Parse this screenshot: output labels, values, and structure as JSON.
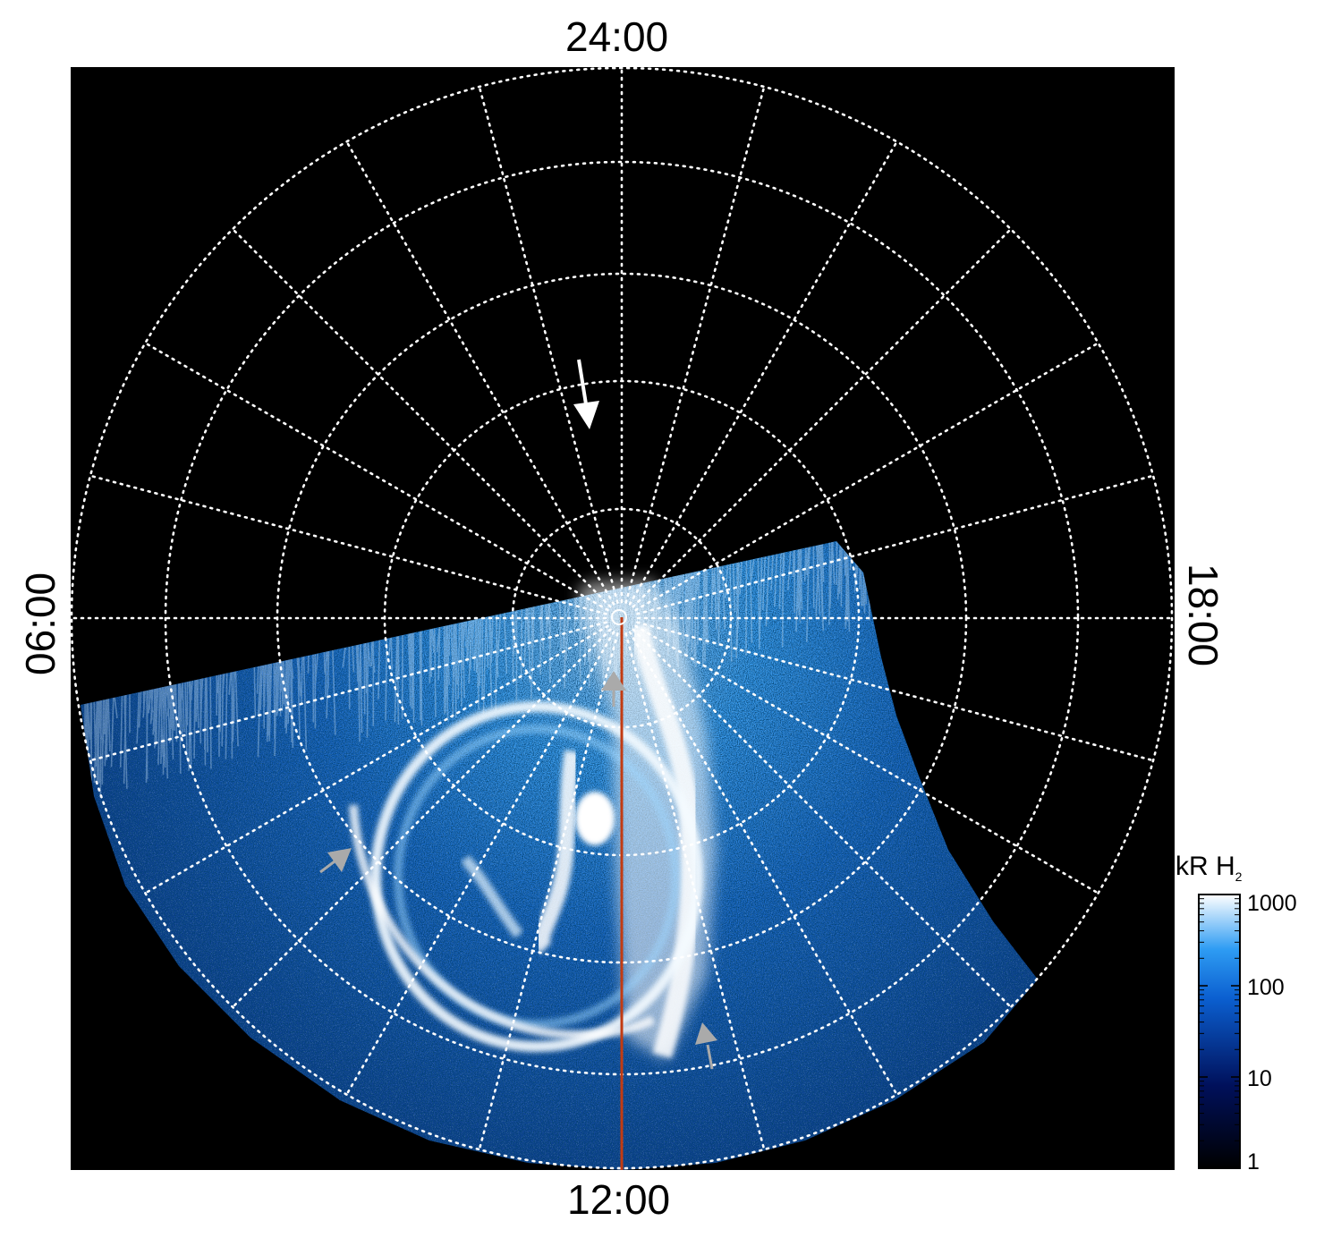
{
  "time_labels": {
    "top": "24:00",
    "bottom": "12:00",
    "left": "06:00",
    "right": "18:00"
  },
  "colorbar": {
    "title": "kR H",
    "title_sub": "2",
    "ticks": [
      "1000",
      "100",
      "10",
      "1"
    ],
    "colors": [
      "#000000",
      "#00105a",
      "#0b5fd0",
      "#2e9cf3",
      "#ffffff"
    ]
  },
  "colors": {
    "background": "#000000",
    "grid": "#ffffff",
    "meridian_line": "#c23b12",
    "arrow_white": "#ffffff",
    "arrow_grey": "#aaaaaa"
  }
}
